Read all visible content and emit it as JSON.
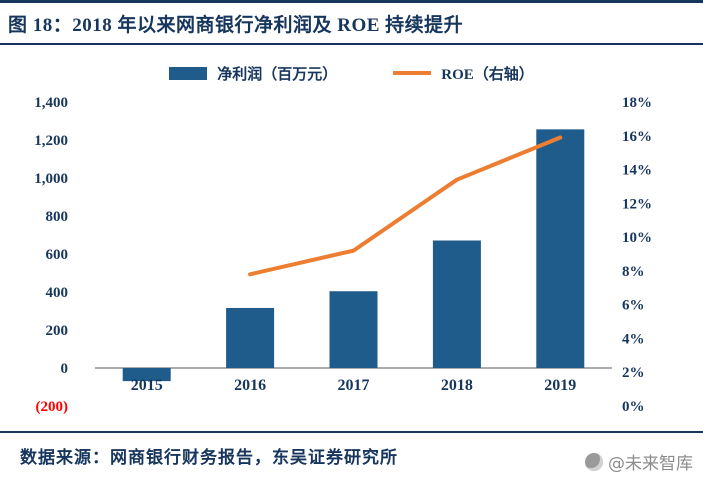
{
  "header": {
    "title": "图 18：2018 年以来网商银行净利润及 ROE 持续提升"
  },
  "legend": {
    "bar_label": "净利润（百万元）",
    "line_label": "ROE（右轴）"
  },
  "footer": {
    "source": "数据来源：网商银行财务报告，东吴证券研究所"
  },
  "watermark": {
    "text": "@未来智库"
  },
  "colors": {
    "title": "#17365D",
    "bar": "#1F5C8B",
    "line": "#ED7D31",
    "axis_text": "#17365D",
    "negative_label": "#FF0000",
    "zero_axis": "#595959"
  },
  "chart_data": {
    "type": "bar",
    "subtype": "bar-line-combo",
    "title": "2018 年以来网商银行净利润及 ROE 持续提升",
    "categories": [
      "2015",
      "2016",
      "2017",
      "2018",
      "2019"
    ],
    "series": [
      {
        "name": "净利润（百万元）",
        "type": "bar",
        "axis": "left",
        "values": [
          -69,
          316,
          404,
          671,
          1256
        ]
      },
      {
        "name": "ROE（右轴）",
        "type": "line",
        "axis": "right",
        "values": [
          null,
          7.8,
          9.2,
          13.4,
          15.9
        ]
      }
    ],
    "left_axis": {
      "min": -200,
      "max": 1400,
      "step": 200,
      "tick_labels": [
        "(200)",
        "0",
        "200",
        "400",
        "600",
        "800",
        "1,000",
        "1,200",
        "1,400"
      ]
    },
    "right_axis": {
      "min": 0,
      "max": 18,
      "step": 2,
      "tick_labels": [
        "0%",
        "2%",
        "4%",
        "6%",
        "8%",
        "10%",
        "12%",
        "14%",
        "16%",
        "18%"
      ]
    },
    "legend_position": "top",
    "grid": false
  }
}
